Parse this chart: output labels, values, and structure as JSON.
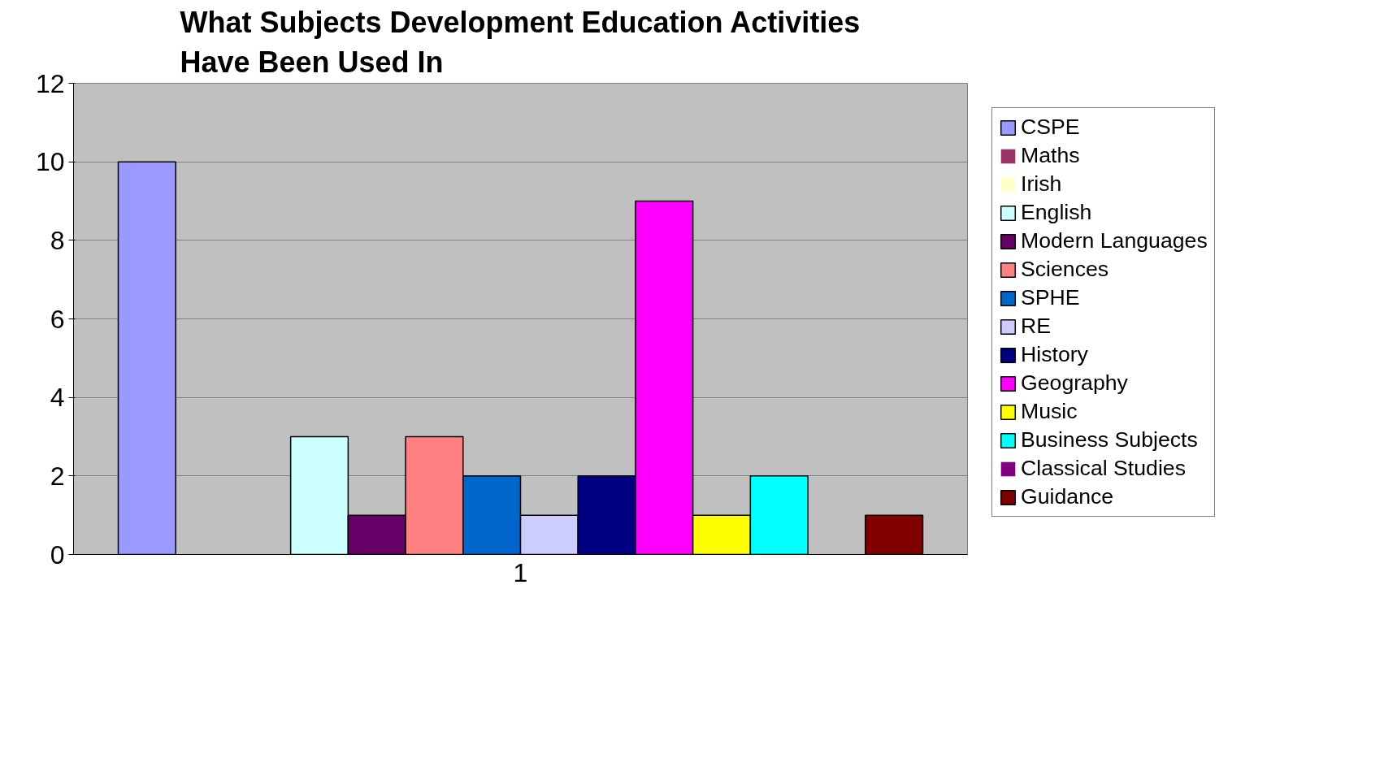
{
  "chart_data": {
    "type": "bar",
    "title": "What Subjects Development Education Activities\nHave Been Used In",
    "categories": [
      "1"
    ],
    "series": [
      {
        "name": "CSPE",
        "color": "#9999ff",
        "values": [
          10
        ]
      },
      {
        "name": "Maths",
        "color": "#993366",
        "values": [
          0
        ]
      },
      {
        "name": "Irish",
        "color": "#ffffcc",
        "values": [
          0
        ]
      },
      {
        "name": "English",
        "color": "#ccffff",
        "values": [
          3
        ]
      },
      {
        "name": "Modern Languages",
        "color": "#660066",
        "values": [
          1
        ]
      },
      {
        "name": "Sciences",
        "color": "#ff8080",
        "values": [
          3
        ]
      },
      {
        "name": "SPHE",
        "color": "#0066cc",
        "values": [
          2
        ]
      },
      {
        "name": "RE",
        "color": "#ccccff",
        "values": [
          1
        ]
      },
      {
        "name": "History",
        "color": "#000080",
        "values": [
          2
        ]
      },
      {
        "name": "Geography",
        "color": "#ff00ff",
        "values": [
          9
        ]
      },
      {
        "name": "Music",
        "color": "#ffff00",
        "values": [
          1
        ]
      },
      {
        "name": "Business Subjects",
        "color": "#00ffff",
        "values": [
          2
        ]
      },
      {
        "name": "Classical Studies",
        "color": "#800080",
        "values": [
          0
        ]
      },
      {
        "name": "Guidance",
        "color": "#800000",
        "values": [
          1
        ]
      }
    ],
    "ylim": [
      0,
      12
    ],
    "yticks": [
      0,
      2,
      4,
      6,
      8,
      10,
      12
    ],
    "grid": "y",
    "legend": "right"
  }
}
